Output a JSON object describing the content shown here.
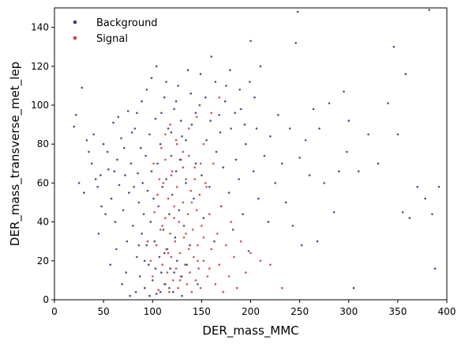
{
  "chart_data": {
    "type": "scatter",
    "title": "",
    "xlabel": "DER_mass_MMC",
    "ylabel": "DER_mass_transverse_met_lep",
    "xlim": [
      0,
      400
    ],
    "ylim": [
      0,
      150
    ],
    "xticks": [
      0,
      50,
      100,
      150,
      200,
      250,
      300,
      350,
      400
    ],
    "yticks": [
      0,
      20,
      40,
      60,
      80,
      100,
      120,
      140
    ],
    "grid": false,
    "legend": {
      "placement": "top-left",
      "frame": false
    },
    "series": [
      {
        "name": "Background",
        "color": "#3b3b82",
        "points": [
          [
            20,
            89
          ],
          [
            25,
            60
          ],
          [
            30,
            55
          ],
          [
            35,
            76
          ],
          [
            40,
            85
          ],
          [
            42,
            62
          ],
          [
            48,
            48
          ],
          [
            50,
            80
          ],
          [
            55,
            67
          ],
          [
            58,
            52
          ],
          [
            60,
            91
          ],
          [
            62,
            40
          ],
          [
            64,
            72
          ],
          [
            66,
            59
          ],
          [
            68,
            83
          ],
          [
            70,
            46
          ],
          [
            72,
            64
          ],
          [
            74,
            30
          ],
          [
            75,
            97
          ],
          [
            76,
            55
          ],
          [
            78,
            70
          ],
          [
            80,
            38
          ],
          [
            81,
            58
          ],
          [
            82,
            88
          ],
          [
            84,
            22
          ],
          [
            85,
            65
          ],
          [
            86,
            50
          ],
          [
            87,
            12
          ],
          [
            88,
            78
          ],
          [
            89,
            34
          ],
          [
            90,
            60
          ],
          [
            91,
            44
          ],
          [
            92,
            6
          ],
          [
            93,
            74
          ],
          [
            94,
            28
          ],
          [
            95,
            56
          ],
          [
            96,
            18
          ],
          [
            97,
            85
          ],
          [
            98,
            40
          ],
          [
            99,
            66
          ],
          [
            100,
            10
          ],
          [
            101,
            52
          ],
          [
            102,
            30
          ],
          [
            103,
            93
          ],
          [
            104,
            3
          ],
          [
            105,
            70
          ],
          [
            106,
            48
          ],
          [
            107,
            22
          ],
          [
            108,
            80
          ],
          [
            109,
            14
          ],
          [
            110,
            58
          ],
          [
            111,
            36
          ],
          [
            112,
            104
          ],
          [
            113,
            8
          ],
          [
            114,
            62
          ],
          [
            115,
            26
          ],
          [
            116,
            88
          ],
          [
            117,
            44
          ],
          [
            118,
            16
          ],
          [
            119,
            74
          ],
          [
            120,
            54
          ],
          [
            121,
            4
          ],
          [
            122,
            98
          ],
          [
            123,
            32
          ],
          [
            124,
            66
          ],
          [
            125,
            20
          ],
          [
            126,
            110
          ],
          [
            127,
            46
          ],
          [
            128,
            72
          ],
          [
            129,
            12
          ],
          [
            130,
            84
          ],
          [
            132,
            38
          ],
          [
            134,
            60
          ],
          [
            136,
            118
          ],
          [
            138,
            28
          ],
          [
            140,
            90
          ],
          [
            142,
            52
          ],
          [
            144,
            70
          ],
          [
            146,
            8
          ],
          [
            148,
            100
          ],
          [
            150,
            64
          ],
          [
            152,
            42
          ],
          [
            155,
            82
          ],
          [
            158,
            58
          ],
          [
            160,
            125
          ],
          [
            163,
            30
          ],
          [
            165,
            76
          ],
          [
            168,
            95
          ],
          [
            170,
            48
          ],
          [
            172,
            68
          ],
          [
            175,
            110
          ],
          [
            178,
            55
          ],
          [
            180,
            88
          ],
          [
            182,
            36
          ],
          [
            185,
            72
          ],
          [
            188,
            62
          ],
          [
            190,
            98
          ],
          [
            192,
            44
          ],
          [
            195,
            80
          ],
          [
            198,
            25
          ],
          [
            200,
            133
          ],
          [
            203,
            66
          ],
          [
            206,
            88
          ],
          [
            208,
            52
          ],
          [
            210,
            120
          ],
          [
            214,
            74
          ],
          [
            218,
            40
          ],
          [
            220,
            84
          ],
          [
            225,
            60
          ],
          [
            228,
            95
          ],
          [
            232,
            70
          ],
          [
            236,
            50
          ],
          [
            240,
            88
          ],
          [
            243,
            38
          ],
          [
            246,
            132
          ],
          [
            248,
            148
          ],
          [
            250,
            73
          ],
          [
            252,
            28
          ],
          [
            256,
            82
          ],
          [
            260,
            64
          ],
          [
            264,
            98
          ],
          [
            268,
            30
          ],
          [
            270,
            88
          ],
          [
            275,
            60
          ],
          [
            280,
            101
          ],
          [
            285,
            45
          ],
          [
            290,
            66
          ],
          [
            295,
            107
          ],
          [
            298,
            76
          ],
          [
            300,
            92
          ],
          [
            305,
            6
          ],
          [
            310,
            66
          ],
          [
            320,
            85
          ],
          [
            330,
            70
          ],
          [
            340,
            101
          ],
          [
            346,
            130
          ],
          [
            350,
            85
          ],
          [
            355,
            45
          ],
          [
            358,
            116
          ],
          [
            362,
            42
          ],
          [
            370,
            58
          ],
          [
            378,
            52
          ],
          [
            382,
            149
          ],
          [
            385,
            44
          ],
          [
            388,
            16
          ],
          [
            392,
            58
          ],
          [
            22,
            95
          ],
          [
            45,
            34
          ],
          [
            52,
            44
          ],
          [
            57,
            18
          ],
          [
            63,
            26
          ],
          [
            69,
            8
          ],
          [
            73,
            14
          ],
          [
            77,
            2
          ],
          [
            83,
            4
          ],
          [
            86,
            28
          ],
          [
            92,
            20
          ],
          [
            97,
            2
          ],
          [
            103,
            16
          ],
          [
            108,
            4
          ],
          [
            112,
            24
          ],
          [
            117,
            6
          ],
          [
            122,
            14
          ],
          [
            130,
            2
          ],
          [
            135,
            18
          ],
          [
            28,
            109
          ],
          [
            33,
            82
          ],
          [
            38,
            70
          ],
          [
            44,
            58
          ],
          [
            47,
            64
          ],
          [
            54,
            76
          ],
          [
            61,
            66
          ],
          [
            65,
            94
          ],
          [
            71,
            78
          ],
          [
            79,
            86
          ],
          [
            84,
            96
          ],
          [
            89,
            102
          ],
          [
            94,
            108
          ],
          [
            99,
            114
          ],
          [
            104,
            120
          ],
          [
            109,
            96
          ],
          [
            114,
            112
          ],
          [
            119,
            86
          ],
          [
            124,
            102
          ],
          [
            129,
            92
          ],
          [
            134,
            82
          ],
          [
            139,
            106
          ],
          [
            144,
            96
          ],
          [
            149,
            116
          ],
          [
            154,
            104
          ],
          [
            159,
            92
          ],
          [
            164,
            112
          ],
          [
            169,
            86
          ],
          [
            174,
            102
          ],
          [
            179,
            118
          ],
          [
            184,
            96
          ],
          [
            189,
            108
          ],
          [
            194,
            90
          ],
          [
            199,
            112
          ],
          [
            204,
            104
          ]
        ]
      },
      {
        "name": "Signal",
        "color": "#c8413c",
        "points": [
          [
            95,
            30
          ],
          [
            98,
            20
          ],
          [
            100,
            12
          ],
          [
            102,
            45
          ],
          [
            104,
            28
          ],
          [
            106,
            5
          ],
          [
            108,
            36
          ],
          [
            110,
            18
          ],
          [
            111,
            60
          ],
          [
            112,
            8
          ],
          [
            113,
            42
          ],
          [
            114,
            26
          ],
          [
            115,
            14
          ],
          [
            116,
            52
          ],
          [
            117,
            4
          ],
          [
            118,
            34
          ],
          [
            119,
            22
          ],
          [
            120,
            66
          ],
          [
            121,
            10
          ],
          [
            122,
            48
          ],
          [
            123,
            30
          ],
          [
            124,
            16
          ],
          [
            125,
            58
          ],
          [
            126,
            6
          ],
          [
            127,
            40
          ],
          [
            128,
            24
          ],
          [
            129,
            72
          ],
          [
            130,
            12
          ],
          [
            131,
            50
          ],
          [
            132,
            32
          ],
          [
            133,
            18
          ],
          [
            134,
            62
          ],
          [
            135,
            8
          ],
          [
            136,
            44
          ],
          [
            137,
            26
          ],
          [
            138,
            14
          ],
          [
            139,
            56
          ],
          [
            140,
            4
          ],
          [
            141,
            36
          ],
          [
            142,
            22
          ],
          [
            143,
            68
          ],
          [
            144,
            10
          ],
          [
            145,
            46
          ],
          [
            146,
            28
          ],
          [
            147,
            16
          ],
          [
            148,
            54
          ],
          [
            149,
            6
          ],
          [
            150,
            38
          ],
          [
            152,
            20
          ],
          [
            154,
            60
          ],
          [
            156,
            12
          ],
          [
            158,
            44
          ],
          [
            160,
            26
          ],
          [
            162,
            70
          ],
          [
            164,
            8
          ],
          [
            166,
            34
          ],
          [
            168,
            18
          ],
          [
            170,
            48
          ],
          [
            172,
            4
          ],
          [
            175,
            28
          ],
          [
            178,
            12
          ],
          [
            180,
            40
          ],
          [
            183,
            22
          ],
          [
            186,
            6
          ],
          [
            190,
            30
          ],
          [
            195,
            14
          ],
          [
            200,
            24
          ],
          [
            210,
            20
          ],
          [
            220,
            18
          ],
          [
            232,
            6
          ],
          [
            109,
            78
          ],
          [
            113,
            85
          ],
          [
            118,
            90
          ],
          [
            124,
            82
          ],
          [
            131,
            76
          ],
          [
            137,
            88
          ],
          [
            145,
            94
          ],
          [
            152,
            80
          ],
          [
            160,
            96
          ],
          [
            168,
            104
          ],
          [
            105,
            54
          ],
          [
            110,
            38
          ],
          [
            116,
            24
          ],
          [
            122,
            42
          ],
          [
            128,
            10
          ],
          [
            134,
            34
          ],
          [
            140,
            50
          ],
          [
            146,
            20
          ],
          [
            152,
            32
          ],
          [
            158,
            16
          ],
          [
            101,
            70
          ],
          [
            107,
            62
          ],
          [
            113,
            72
          ],
          [
            119,
            64
          ],
          [
            125,
            80
          ],
          [
            131,
            68
          ],
          [
            137,
            74
          ],
          [
            143,
            62
          ],
          [
            149,
            70
          ],
          [
            155,
            58
          ]
        ]
      }
    ]
  }
}
